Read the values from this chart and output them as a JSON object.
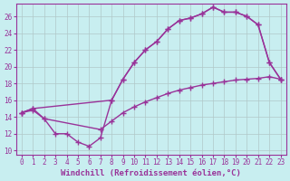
{
  "bg_color": "#c8eef0",
  "grid_color": "#b0c8c8",
  "line_color": "#993399",
  "marker": "+",
  "markersize": 5,
  "linewidth": 1.0,
  "xlabel": "Windchill (Refroidissement éolien,°C)",
  "xlabel_fontsize": 6.5,
  "tick_fontsize": 5.5,
  "xlim": [
    -0.5,
    23.5
  ],
  "ylim": [
    9.5,
    27.5
  ],
  "yticks": [
    10,
    12,
    14,
    16,
    18,
    20,
    22,
    24,
    26
  ],
  "xticks": [
    0,
    1,
    2,
    3,
    4,
    5,
    6,
    7,
    8,
    9,
    10,
    11,
    12,
    13,
    14,
    15,
    16,
    17,
    18,
    19,
    20,
    21,
    22,
    23
  ],
  "curve_upper_x": [
    0,
    1,
    8,
    9,
    10,
    11,
    12,
    13,
    14,
    15,
    16,
    17,
    18,
    19,
    20,
    21,
    22,
    23
  ],
  "curve_upper_y": [
    14.5,
    15.0,
    16.0,
    18.5,
    20.5,
    22.0,
    23.0,
    24.5,
    25.5,
    25.8,
    26.3,
    27.1,
    26.5,
    26.5,
    26.0,
    25.0,
    20.5,
    18.5
  ],
  "curve_lower_x": [
    0,
    1,
    2,
    3,
    4,
    5,
    6,
    7,
    8,
    9,
    10,
    11,
    12,
    13,
    14,
    15,
    16,
    17,
    18,
    19,
    20,
    21,
    22,
    23
  ],
  "curve_lower_y": [
    14.5,
    15.0,
    13.8,
    12.0,
    12.0,
    11.0,
    10.5,
    11.5,
    16.0,
    18.5,
    20.5,
    22.0,
    23.0,
    24.5,
    25.5,
    25.8,
    26.3,
    27.1,
    26.5,
    26.5,
    26.0,
    25.0,
    20.5,
    18.5
  ],
  "curve_diag_x": [
    0,
    1,
    2,
    7,
    8,
    9,
    10,
    11,
    12,
    13,
    14,
    15,
    16,
    17,
    18,
    19,
    20,
    21,
    22,
    23
  ],
  "curve_diag_y": [
    14.5,
    14.8,
    13.8,
    12.5,
    13.5,
    14.5,
    15.2,
    15.8,
    16.3,
    16.8,
    17.2,
    17.5,
    17.8,
    18.0,
    18.2,
    18.4,
    18.5,
    18.6,
    18.8,
    18.5
  ]
}
